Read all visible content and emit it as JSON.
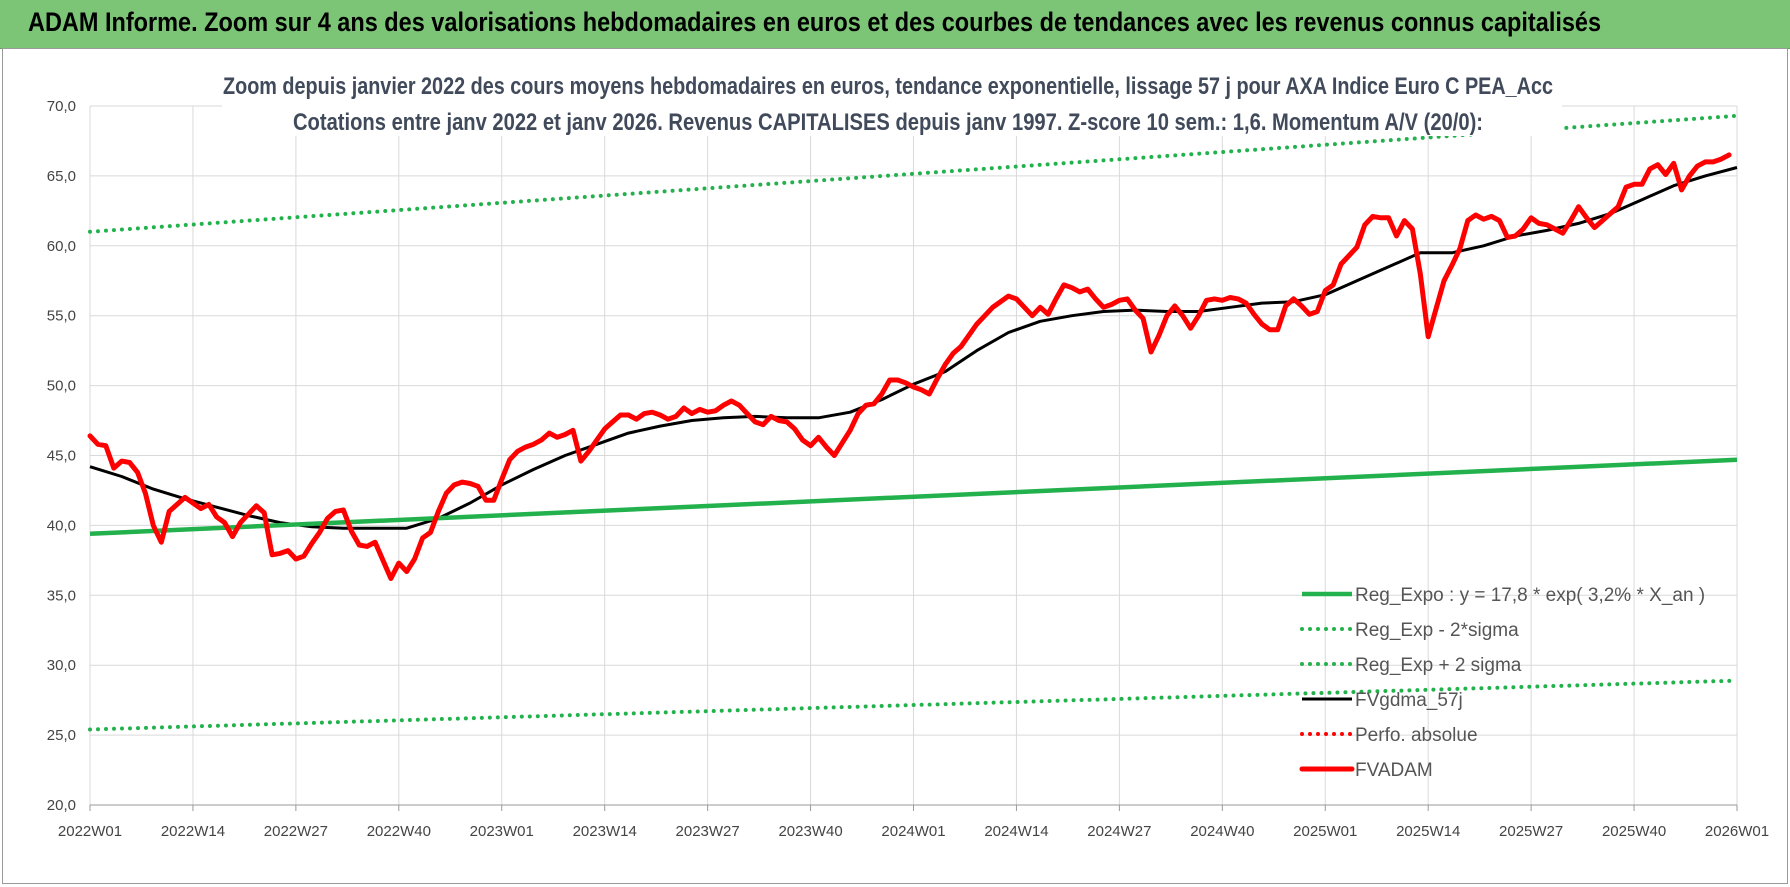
{
  "banner": {
    "text": "ADAM Informe. Zoom sur 4 ans des valorisations hebdomadaires en euros et des courbes de tendances avec les revenus connus capitalisés"
  },
  "chart_data": {
    "type": "line",
    "title": "Zoom depuis janvier 2022 des cours moyens hebdomadaires en euros, tendance exponentielle, lissage 57 j pour AXA Indice Euro C PEA_Acc",
    "subtitle": "Cotations entre janv 2022 et janv 2026. Revenus CAPITALISES depuis janv 1997. Z-score 10 sem.: 1,6. Momentum A/V (20/0):",
    "xlabel": "",
    "ylabel": "",
    "ylim": [
      20,
      70
    ],
    "yticks": [
      "20,0",
      "25,0",
      "30,0",
      "35,0",
      "40,0",
      "45,0",
      "50,0",
      "55,0",
      "60,0",
      "65,0",
      "70,0"
    ],
    "xlim_weeks": [
      0,
      208
    ],
    "xticks": [
      {
        "label": "2022W01",
        "week": 0
      },
      {
        "label": "2022W14",
        "week": 13
      },
      {
        "label": "2022W27",
        "week": 26
      },
      {
        "label": "2022W40",
        "week": 39
      },
      {
        "label": "2023W01",
        "week": 52
      },
      {
        "label": "2023W14",
        "week": 65
      },
      {
        "label": "2023W27",
        "week": 78
      },
      {
        "label": "2023W40",
        "week": 91
      },
      {
        "label": "2024W01",
        "week": 104
      },
      {
        "label": "2024W14",
        "week": 117
      },
      {
        "label": "2024W27",
        "week": 130
      },
      {
        "label": "2024W40",
        "week": 143
      },
      {
        "label": "2025W01",
        "week": 156
      },
      {
        "label": "2025W14",
        "week": 169
      },
      {
        "label": "2025W27",
        "week": 182
      },
      {
        "label": "2025W40",
        "week": 195
      },
      {
        "label": "2026W01",
        "week": 208
      }
    ],
    "grid": true,
    "legend_position": "bottom-right",
    "series": [
      {
        "name": "Reg_Expo : y = 17,8 * exp( 3,2% *  X_an )",
        "style": "solid-thick",
        "color": "#22b14c",
        "points": [
          [
            0,
            39.4
          ],
          [
            208,
            44.7
          ]
        ]
      },
      {
        "name": "Reg_Exp - 2*sigma",
        "style": "dotted",
        "color": "#22b14c",
        "points": [
          [
            0,
            25.4
          ],
          [
            208,
            28.9
          ]
        ]
      },
      {
        "name": "Reg_Exp + 2 sigma",
        "style": "dotted",
        "color": "#22b14c",
        "points": [
          [
            0,
            61.0
          ],
          [
            208,
            69.3
          ]
        ]
      },
      {
        "name": "FVgdma_57j",
        "style": "solid",
        "color": "#000000",
        "points": [
          [
            0,
            44.2
          ],
          [
            4,
            43.5
          ],
          [
            8,
            42.6
          ],
          [
            12,
            41.9
          ],
          [
            16,
            41.3
          ],
          [
            20,
            40.7
          ],
          [
            24,
            40.2
          ],
          [
            28,
            39.9
          ],
          [
            32,
            39.8
          ],
          [
            36,
            39.8
          ],
          [
            40,
            39.8
          ],
          [
            44,
            40.5
          ],
          [
            48,
            41.6
          ],
          [
            52,
            42.9
          ],
          [
            56,
            44.0
          ],
          [
            60,
            45.0
          ],
          [
            64,
            45.8
          ],
          [
            68,
            46.6
          ],
          [
            72,
            47.1
          ],
          [
            76,
            47.5
          ],
          [
            80,
            47.7
          ],
          [
            84,
            47.8
          ],
          [
            88,
            47.7
          ],
          [
            92,
            47.7
          ],
          [
            96,
            48.1
          ],
          [
            100,
            49.0
          ],
          [
            104,
            50.1
          ],
          [
            108,
            51.0
          ],
          [
            112,
            52.5
          ],
          [
            116,
            53.8
          ],
          [
            120,
            54.6
          ],
          [
            124,
            55.0
          ],
          [
            128,
            55.3
          ],
          [
            132,
            55.4
          ],
          [
            136,
            55.3
          ],
          [
            140,
            55.3
          ],
          [
            144,
            55.6
          ],
          [
            148,
            55.9
          ],
          [
            152,
            56.0
          ],
          [
            156,
            56.5
          ],
          [
            160,
            57.5
          ],
          [
            164,
            58.5
          ],
          [
            168,
            59.5
          ],
          [
            172,
            59.5
          ],
          [
            176,
            60.0
          ],
          [
            180,
            60.7
          ],
          [
            184,
            61.1
          ],
          [
            188,
            61.6
          ],
          [
            192,
            62.3
          ],
          [
            196,
            63.3
          ],
          [
            200,
            64.3
          ],
          [
            204,
            65.0
          ],
          [
            208,
            65.6
          ]
        ]
      },
      {
        "name": "Perfo. absolue",
        "style": "dotted",
        "color": "#ff0000",
        "points": []
      },
      {
        "name": "FVADAM",
        "style": "solid-thick",
        "color": "#ff0000",
        "points": [
          [
            0,
            46.4
          ],
          [
            1,
            45.8
          ],
          [
            2,
            45.7
          ],
          [
            3,
            44.1
          ],
          [
            4,
            44.6
          ],
          [
            5,
            44.5
          ],
          [
            6,
            43.8
          ],
          [
            7,
            42.3
          ],
          [
            8,
            40.0
          ],
          [
            9,
            38.8
          ],
          [
            10,
            41.0
          ],
          [
            11,
            41.5
          ],
          [
            12,
            42.0
          ],
          [
            13,
            41.6
          ],
          [
            14,
            41.2
          ],
          [
            15,
            41.5
          ],
          [
            16,
            40.6
          ],
          [
            17,
            40.2
          ],
          [
            18,
            39.2
          ],
          [
            19,
            40.2
          ],
          [
            20,
            40.8
          ],
          [
            21,
            41.4
          ],
          [
            22,
            40.9
          ],
          [
            23,
            37.9
          ],
          [
            24,
            38.0
          ],
          [
            25,
            38.2
          ],
          [
            26,
            37.6
          ],
          [
            27,
            37.8
          ],
          [
            28,
            38.7
          ],
          [
            29,
            39.5
          ],
          [
            30,
            40.5
          ],
          [
            31,
            41.0
          ],
          [
            32,
            41.1
          ],
          [
            33,
            39.6
          ],
          [
            34,
            38.6
          ],
          [
            35,
            38.5
          ],
          [
            36,
            38.8
          ],
          [
            37,
            37.5
          ],
          [
            38,
            36.2
          ],
          [
            39,
            37.3
          ],
          [
            40,
            36.7
          ],
          [
            41,
            37.6
          ],
          [
            42,
            39.1
          ],
          [
            43,
            39.5
          ],
          [
            44,
            41.0
          ],
          [
            45,
            42.3
          ],
          [
            46,
            42.9
          ],
          [
            47,
            43.1
          ],
          [
            48,
            43.0
          ],
          [
            49,
            42.8
          ],
          [
            50,
            41.8
          ],
          [
            51,
            41.8
          ],
          [
            52,
            43.3
          ],
          [
            53,
            44.7
          ],
          [
            54,
            45.3
          ],
          [
            55,
            45.6
          ],
          [
            56,
            45.8
          ],
          [
            57,
            46.1
          ],
          [
            58,
            46.6
          ],
          [
            59,
            46.3
          ],
          [
            60,
            46.5
          ],
          [
            61,
            46.8
          ],
          [
            62,
            44.6
          ],
          [
            63,
            45.3
          ],
          [
            64,
            46.1
          ],
          [
            65,
            46.9
          ],
          [
            66,
            47.4
          ],
          [
            67,
            47.9
          ],
          [
            68,
            47.9
          ],
          [
            69,
            47.6
          ],
          [
            70,
            48.0
          ],
          [
            71,
            48.1
          ],
          [
            72,
            47.9
          ],
          [
            73,
            47.6
          ],
          [
            74,
            47.8
          ],
          [
            75,
            48.4
          ],
          [
            76,
            48.0
          ],
          [
            77,
            48.3
          ],
          [
            78,
            48.1
          ],
          [
            79,
            48.2
          ],
          [
            80,
            48.6
          ],
          [
            81,
            48.9
          ],
          [
            82,
            48.6
          ],
          [
            83,
            48.0
          ],
          [
            84,
            47.4
          ],
          [
            85,
            47.2
          ],
          [
            86,
            47.8
          ],
          [
            87,
            47.5
          ],
          [
            88,
            47.4
          ],
          [
            89,
            46.9
          ],
          [
            90,
            46.1
          ],
          [
            91,
            45.7
          ],
          [
            92,
            46.3
          ],
          [
            93,
            45.6
          ],
          [
            94,
            45.0
          ],
          [
            95,
            45.9
          ],
          [
            96,
            46.8
          ],
          [
            97,
            48.0
          ],
          [
            98,
            48.6
          ],
          [
            99,
            48.7
          ],
          [
            100,
            49.4
          ],
          [
            101,
            50.4
          ],
          [
            102,
            50.4
          ],
          [
            103,
            50.2
          ],
          [
            104,
            49.9
          ],
          [
            105,
            49.7
          ],
          [
            106,
            49.4
          ],
          [
            107,
            50.5
          ],
          [
            108,
            51.5
          ],
          [
            109,
            52.3
          ],
          [
            110,
            52.8
          ],
          [
            111,
            53.6
          ],
          [
            112,
            54.4
          ],
          [
            113,
            55.0
          ],
          [
            114,
            55.6
          ],
          [
            115,
            56.0
          ],
          [
            116,
            56.4
          ],
          [
            117,
            56.2
          ],
          [
            118,
            55.6
          ],
          [
            119,
            55.0
          ],
          [
            120,
            55.6
          ],
          [
            121,
            55.1
          ],
          [
            122,
            56.2
          ],
          [
            123,
            57.2
          ],
          [
            124,
            57.0
          ],
          [
            125,
            56.7
          ],
          [
            126,
            56.9
          ],
          [
            127,
            56.2
          ],
          [
            128,
            55.6
          ],
          [
            129,
            55.8
          ],
          [
            130,
            56.1
          ],
          [
            131,
            56.2
          ],
          [
            132,
            55.4
          ],
          [
            133,
            54.8
          ],
          [
            134,
            52.4
          ],
          [
            135,
            53.6
          ],
          [
            136,
            55.0
          ],
          [
            137,
            55.7
          ],
          [
            138,
            55.0
          ],
          [
            139,
            54.1
          ],
          [
            140,
            55.0
          ],
          [
            141,
            56.1
          ],
          [
            142,
            56.2
          ],
          [
            143,
            56.1
          ],
          [
            144,
            56.3
          ],
          [
            145,
            56.2
          ],
          [
            146,
            55.9
          ],
          [
            147,
            55.1
          ],
          [
            148,
            54.4
          ],
          [
            149,
            54.0
          ],
          [
            150,
            54.0
          ],
          [
            151,
            55.7
          ],
          [
            152,
            56.2
          ],
          [
            153,
            55.7
          ],
          [
            154,
            55.1
          ],
          [
            155,
            55.3
          ],
          [
            156,
            56.8
          ],
          [
            157,
            57.2
          ],
          [
            158,
            58.7
          ],
          [
            159,
            59.3
          ],
          [
            160,
            59.9
          ],
          [
            161,
            61.5
          ],
          [
            162,
            62.1
          ],
          [
            163,
            62.0
          ],
          [
            164,
            62.0
          ],
          [
            165,
            60.7
          ],
          [
            166,
            61.8
          ],
          [
            167,
            61.2
          ],
          [
            168,
            58.0
          ],
          [
            169,
            53.5
          ],
          [
            170,
            55.5
          ],
          [
            171,
            57.5
          ],
          [
            172,
            58.6
          ],
          [
            173,
            59.8
          ],
          [
            174,
            61.8
          ],
          [
            175,
            62.2
          ],
          [
            176,
            61.9
          ],
          [
            177,
            62.1
          ],
          [
            178,
            61.8
          ],
          [
            179,
            60.6
          ],
          [
            180,
            60.7
          ],
          [
            181,
            61.2
          ],
          [
            182,
            62.0
          ],
          [
            183,
            61.6
          ],
          [
            184,
            61.5
          ],
          [
            185,
            61.2
          ],
          [
            186,
            60.9
          ],
          [
            187,
            61.8
          ],
          [
            188,
            62.8
          ],
          [
            189,
            62.0
          ],
          [
            190,
            61.3
          ],
          [
            191,
            61.8
          ],
          [
            192,
            62.3
          ],
          [
            193,
            62.8
          ],
          [
            194,
            64.2
          ],
          [
            195,
            64.4
          ],
          [
            196,
            64.4
          ],
          [
            197,
            65.5
          ],
          [
            198,
            65.8
          ],
          [
            199,
            65.1
          ],
          [
            200,
            65.9
          ],
          [
            201,
            64.0
          ],
          [
            202,
            65.0
          ],
          [
            203,
            65.7
          ],
          [
            204,
            66.0
          ],
          [
            205,
            66.0
          ],
          [
            206,
            66.2
          ],
          [
            207,
            66.5
          ]
        ]
      }
    ]
  }
}
